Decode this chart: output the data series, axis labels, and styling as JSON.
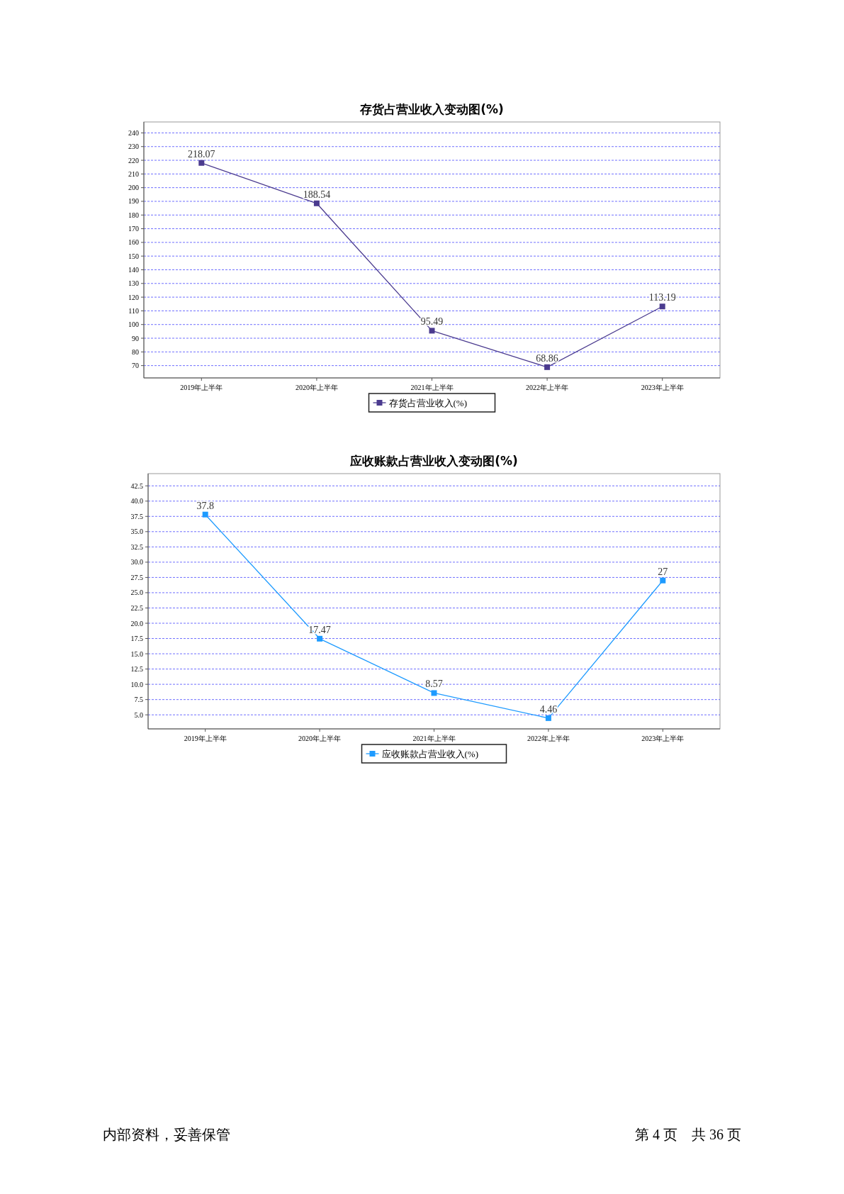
{
  "chart_data": [
    {
      "type": "line",
      "title": "存货占营业收入变动图(%)",
      "categories": [
        "2019年上半年",
        "2020年上半年",
        "2021年上半年",
        "2022年上半年",
        "2023年上半年"
      ],
      "series": [
        {
          "name": "存货占营业收入(%)",
          "color": "#4b3b8f",
          "values": [
            218.07,
            188.54,
            95.49,
            68.86,
            113.19
          ]
        }
      ],
      "ylim": [
        61,
        248
      ],
      "yticks": [
        70,
        80,
        90,
        100,
        110,
        120,
        130,
        140,
        150,
        160,
        170,
        180,
        190,
        200,
        210,
        220,
        230,
        240
      ],
      "grid": "y",
      "legend": "bottom",
      "marker": "square",
      "line_style": "solid",
      "data_labels": true
    },
    {
      "type": "line",
      "title": "应收账款占营业收入变动图(%)",
      "categories": [
        "2019年上半年",
        "2020年上半年",
        "2021年上半年",
        "2022年上半年",
        "2023年上半年"
      ],
      "series": [
        {
          "name": "应收账款占营业收入(%)",
          "color": "#1e9bff",
          "values": [
            37.8,
            17.47,
            8.57,
            4.46,
            27
          ]
        }
      ],
      "ylim": [
        2.7,
        44.5
      ],
      "yticks": [
        {
          "value": 5,
          "label": "5.0"
        },
        7.5,
        {
          "value": 10,
          "label": "10.0"
        },
        12.5,
        {
          "value": 15,
          "label": "15.0"
        },
        17.5,
        {
          "value": 20,
          "label": "20.0"
        },
        22.5,
        {
          "value": 25,
          "label": "25.0"
        },
        27.5,
        {
          "value": 30,
          "label": "30.0"
        },
        32.5,
        {
          "value": 35,
          "label": "35.0"
        },
        37.5,
        {
          "value": 40,
          "label": "40.0"
        },
        42.5
      ],
      "grid": "y",
      "legend": "bottom",
      "marker": "square",
      "line_style": "solid",
      "data_labels": true,
      "annotations": [
        "内部资料，妥善保管",
        "第 4 页　共 36 页"
      ]
    }
  ]
}
